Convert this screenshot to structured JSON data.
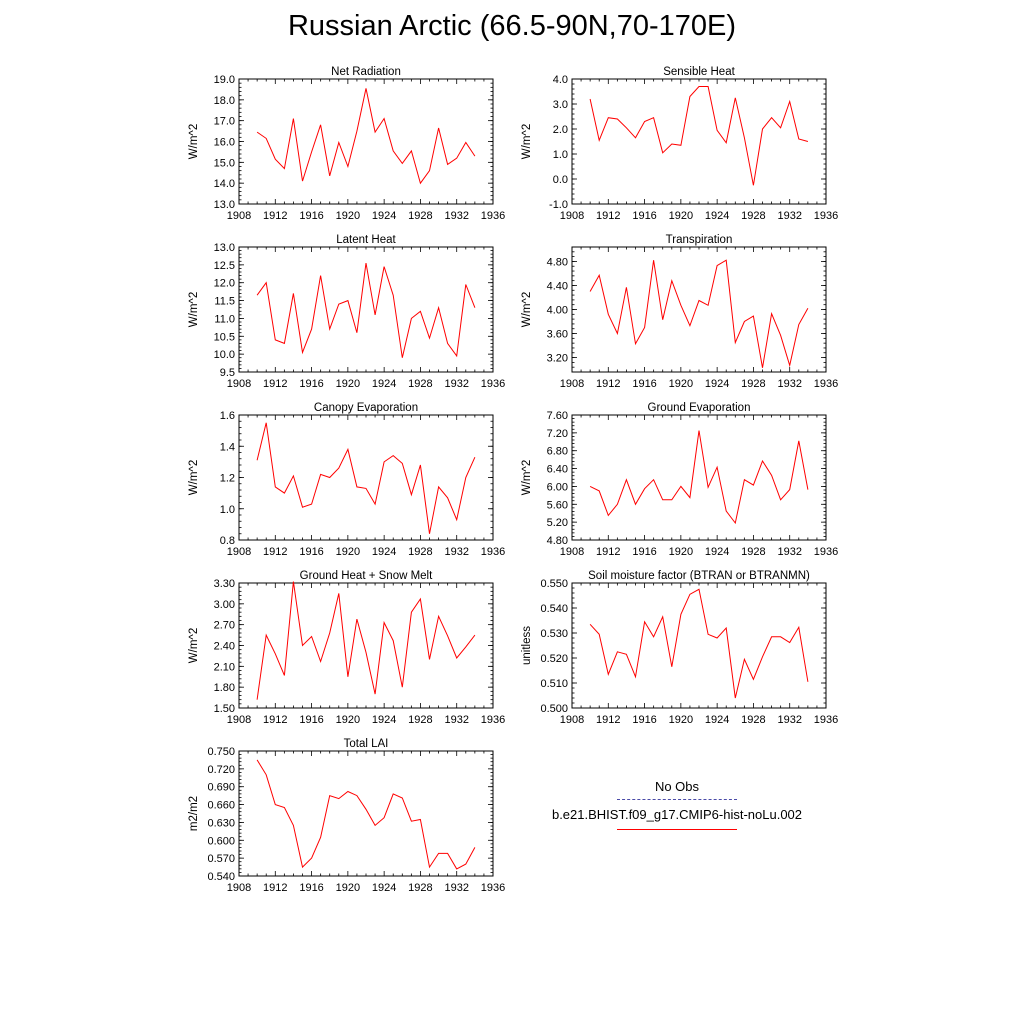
{
  "title": "Russian Arctic (66.5-90N,70-170E)",
  "legend": {
    "obs_label": "No Obs",
    "case_label": "b.e21.BHIST.f09_g17.CMIP6-hist-noLu.002",
    "obs_color": "#4a4aa8",
    "case_color": "#ff0000"
  },
  "chart_data": [
    {
      "type": "line",
      "title": "Net Radiation",
      "ylabel": "W/m^2",
      "xlim": [
        1908,
        1936
      ],
      "xticks": [
        "1908",
        "1912",
        "1916",
        "1920",
        "1924",
        "1928",
        "1932",
        "1936"
      ],
      "ylim": [
        13.0,
        19.0
      ],
      "yticks": [
        "13.0",
        "14.0",
        "15.0",
        "16.0",
        "17.0",
        "18.0",
        "19.0"
      ],
      "x": [
        1910,
        1911,
        1912,
        1913,
        1914,
        1915,
        1916,
        1917,
        1918,
        1919,
        1920,
        1921,
        1922,
        1923,
        1924,
        1925,
        1926,
        1927,
        1928,
        1929,
        1930,
        1931,
        1932,
        1933,
        1934
      ],
      "series": [
        {
          "values": [
            16.45,
            16.15,
            15.15,
            14.7,
            17.1,
            14.1,
            15.5,
            16.8,
            14.35,
            15.95,
            14.8,
            16.5,
            18.55,
            16.45,
            17.1,
            15.55,
            14.95,
            15.55,
            14.0,
            14.6,
            16.65,
            14.9,
            15.2,
            15.95,
            15.3
          ]
        }
      ]
    },
    {
      "type": "line",
      "title": "Sensible Heat",
      "ylabel": "W/m^2",
      "xlim": [
        1908,
        1936
      ],
      "xticks": [
        "1908",
        "1912",
        "1916",
        "1920",
        "1924",
        "1928",
        "1932",
        "1936"
      ],
      "ylim": [
        -1.0,
        4.0
      ],
      "yticks": [
        "-1.0",
        "0.0",
        "1.0",
        "2.0",
        "3.0",
        "4.0"
      ],
      "x": [
        1910,
        1911,
        1912,
        1913,
        1914,
        1915,
        1916,
        1917,
        1918,
        1919,
        1920,
        1921,
        1922,
        1923,
        1924,
        1925,
        1926,
        1927,
        1928,
        1929,
        1930,
        1931,
        1932,
        1933,
        1934
      ],
      "series": [
        {
          "values": [
            3.2,
            1.55,
            2.45,
            2.4,
            2.05,
            1.65,
            2.3,
            2.45,
            1.05,
            1.4,
            1.35,
            3.3,
            3.7,
            3.7,
            1.95,
            1.45,
            3.25,
            1.65,
            -0.25,
            2.0,
            2.45,
            2.05,
            3.1,
            1.6,
            1.5
          ]
        }
      ]
    },
    {
      "type": "line",
      "title": "Latent Heat",
      "ylabel": "W/m^2",
      "xlim": [
        1908,
        1936
      ],
      "xticks": [
        "1908",
        "1912",
        "1916",
        "1920",
        "1924",
        "1928",
        "1932",
        "1936"
      ],
      "ylim": [
        9.5,
        13.0
      ],
      "yticks": [
        "9.5",
        "10.0",
        "10.5",
        "11.0",
        "11.5",
        "12.0",
        "12.5",
        "13.0"
      ],
      "x": [
        1910,
        1911,
        1912,
        1913,
        1914,
        1915,
        1916,
        1917,
        1918,
        1919,
        1920,
        1921,
        1922,
        1923,
        1924,
        1925,
        1926,
        1927,
        1928,
        1929,
        1930,
        1931,
        1932,
        1933,
        1934
      ],
      "series": [
        {
          "values": [
            11.65,
            12.0,
            10.4,
            10.3,
            11.7,
            10.05,
            10.7,
            12.2,
            10.7,
            11.4,
            11.5,
            10.6,
            12.55,
            11.1,
            12.45,
            11.65,
            9.9,
            11.0,
            11.2,
            10.45,
            11.3,
            10.3,
            9.95,
            11.95,
            11.3
          ]
        }
      ]
    },
    {
      "type": "line",
      "title": "Transpiration",
      "ylabel": "W/m^2",
      "xlim": [
        1908,
        1936
      ],
      "xticks": [
        "1908",
        "1912",
        "1916",
        "1920",
        "1924",
        "1928",
        "1932",
        "1936"
      ],
      "ylim": [
        2.96,
        5.04
      ],
      "yticks": [
        "3.20",
        "3.60",
        "4.00",
        "4.40",
        "4.80"
      ],
      "x": [
        1910,
        1911,
        1912,
        1913,
        1914,
        1915,
        1916,
        1917,
        1918,
        1919,
        1920,
        1921,
        1922,
        1923,
        1924,
        1925,
        1926,
        1927,
        1928,
        1929,
        1930,
        1931,
        1932,
        1933,
        1934
      ],
      "series": [
        {
          "values": [
            4.3,
            4.57,
            3.92,
            3.6,
            4.37,
            3.43,
            3.7,
            4.82,
            3.83,
            4.48,
            4.07,
            3.73,
            4.15,
            4.07,
            4.73,
            4.82,
            3.45,
            3.8,
            3.89,
            3.03,
            3.93,
            3.57,
            3.07,
            3.75,
            4.02
          ]
        }
      ]
    },
    {
      "type": "line",
      "title": "Canopy Evaporation",
      "ylabel": "W/m^2",
      "xlim": [
        1908,
        1936
      ],
      "xticks": [
        "1908",
        "1912",
        "1916",
        "1920",
        "1924",
        "1928",
        "1932",
        "1936"
      ],
      "ylim": [
        0.8,
        1.6
      ],
      "yticks": [
        "0.8",
        "1.0",
        "1.2",
        "1.4",
        "1.6"
      ],
      "x": [
        1910,
        1911,
        1912,
        1913,
        1914,
        1915,
        1916,
        1917,
        1918,
        1919,
        1920,
        1921,
        1922,
        1923,
        1924,
        1925,
        1926,
        1927,
        1928,
        1929,
        1930,
        1931,
        1932,
        1933,
        1934
      ],
      "series": [
        {
          "values": [
            1.31,
            1.55,
            1.14,
            1.1,
            1.21,
            1.01,
            1.03,
            1.22,
            1.2,
            1.26,
            1.38,
            1.14,
            1.13,
            1.03,
            1.3,
            1.34,
            1.29,
            1.09,
            1.28,
            0.84,
            1.14,
            1.07,
            0.93,
            1.2,
            1.33
          ]
        }
      ]
    },
    {
      "type": "line",
      "title": "Ground Evaporation",
      "ylabel": "W/m^2",
      "xlim": [
        1908,
        1936
      ],
      "xticks": [
        "1908",
        "1912",
        "1916",
        "1920",
        "1924",
        "1928",
        "1932",
        "1936"
      ],
      "ylim": [
        4.8,
        7.6
      ],
      "yticks": [
        "4.80",
        "5.20",
        "5.60",
        "6.00",
        "6.40",
        "6.80",
        "7.20",
        "7.60"
      ],
      "x": [
        1910,
        1911,
        1912,
        1913,
        1914,
        1915,
        1916,
        1917,
        1918,
        1919,
        1920,
        1921,
        1922,
        1923,
        1924,
        1925,
        1926,
        1927,
        1928,
        1929,
        1930,
        1931,
        1932,
        1933,
        1934
      ],
      "series": [
        {
          "values": [
            6.0,
            5.9,
            5.35,
            5.6,
            6.15,
            5.6,
            5.95,
            6.15,
            5.7,
            5.7,
            6.0,
            5.75,
            7.25,
            5.98,
            6.43,
            5.45,
            5.18,
            6.15,
            6.03,
            6.57,
            6.25,
            5.7,
            5.93,
            7.02,
            5.93
          ]
        }
      ]
    },
    {
      "type": "line",
      "title": "Ground Heat + Snow Melt",
      "ylabel": "W/m^2",
      "xlim": [
        1908,
        1936
      ],
      "xticks": [
        "1908",
        "1912",
        "1916",
        "1920",
        "1924",
        "1928",
        "1932",
        "1936"
      ],
      "ylim": [
        1.5,
        3.3
      ],
      "yticks": [
        "1.50",
        "1.80",
        "2.10",
        "2.40",
        "2.70",
        "3.00",
        "3.30"
      ],
      "x": [
        1910,
        1911,
        1912,
        1913,
        1914,
        1915,
        1916,
        1917,
        1918,
        1919,
        1920,
        1921,
        1922,
        1923,
        1924,
        1925,
        1926,
        1927,
        1928,
        1929,
        1930,
        1931,
        1932,
        1933,
        1934
      ],
      "series": [
        {
          "values": [
            1.62,
            2.55,
            2.28,
            1.97,
            3.32,
            2.4,
            2.53,
            2.17,
            2.58,
            3.15,
            1.95,
            2.78,
            2.3,
            1.7,
            2.73,
            2.47,
            1.8,
            2.88,
            3.07,
            2.2,
            2.82,
            2.54,
            2.22,
            2.38,
            2.55
          ]
        }
      ]
    },
    {
      "type": "line",
      "title": "Soil moisture factor (BTRAN or BTRANMN)",
      "ylabel": "unitless",
      "xlim": [
        1908,
        1936
      ],
      "xticks": [
        "1908",
        "1912",
        "1916",
        "1920",
        "1924",
        "1928",
        "1932",
        "1936"
      ],
      "ylim": [
        0.5,
        0.55
      ],
      "yticks": [
        "0.500",
        "0.510",
        "0.520",
        "0.530",
        "0.540",
        "0.550"
      ],
      "x": [
        1910,
        1911,
        1912,
        1913,
        1914,
        1915,
        1916,
        1917,
        1918,
        1919,
        1920,
        1921,
        1922,
        1923,
        1924,
        1925,
        1926,
        1927,
        1928,
        1929,
        1930,
        1931,
        1932,
        1933,
        1934
      ],
      "series": [
        {
          "values": [
            0.5335,
            0.5295,
            0.5135,
            0.5225,
            0.5215,
            0.5125,
            0.5345,
            0.5285,
            0.5365,
            0.5165,
            0.5375,
            0.5455,
            0.5475,
            0.5295,
            0.528,
            0.532,
            0.504,
            0.5195,
            0.5115,
            0.5205,
            0.5285,
            0.5285,
            0.5262,
            0.5323,
            0.5105
          ]
        }
      ]
    },
    {
      "type": "line",
      "title": "Total LAI",
      "ylabel": "m2/m2",
      "xlim": [
        1908,
        1936
      ],
      "xticks": [
        "1908",
        "1912",
        "1916",
        "1920",
        "1924",
        "1928",
        "1932",
        "1936"
      ],
      "ylim": [
        0.54,
        0.75
      ],
      "yticks": [
        "0.540",
        "0.570",
        "0.600",
        "0.630",
        "0.660",
        "0.690",
        "0.720",
        "0.750"
      ],
      "x": [
        1910,
        1911,
        1912,
        1913,
        1914,
        1915,
        1916,
        1917,
        1918,
        1919,
        1920,
        1921,
        1922,
        1923,
        1924,
        1925,
        1926,
        1927,
        1928,
        1929,
        1930,
        1931,
        1932,
        1933,
        1934
      ],
      "series": [
        {
          "values": [
            0.735,
            0.71,
            0.66,
            0.655,
            0.625,
            0.555,
            0.57,
            0.605,
            0.675,
            0.67,
            0.682,
            0.675,
            0.652,
            0.625,
            0.638,
            0.678,
            0.671,
            0.632,
            0.635,
            0.555,
            0.578,
            0.578,
            0.552,
            0.56,
            0.588
          ]
        }
      ]
    }
  ]
}
